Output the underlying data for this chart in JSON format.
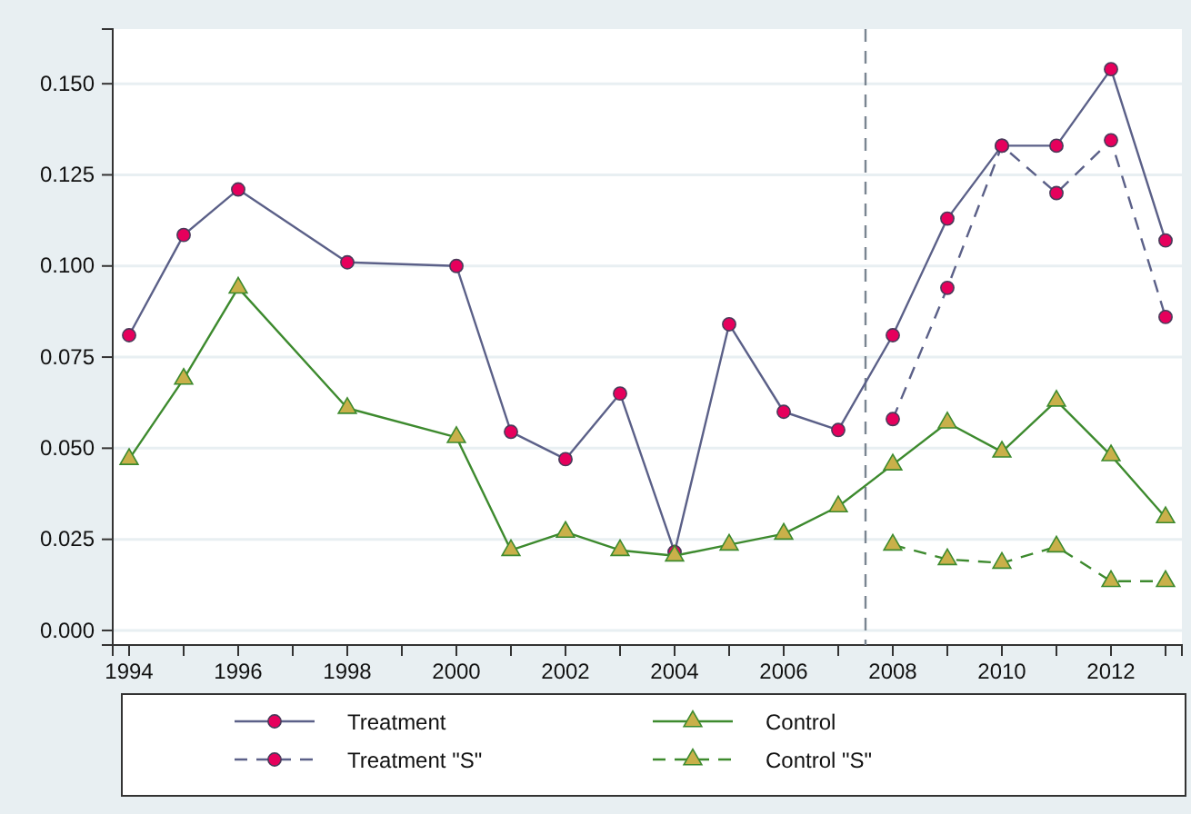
{
  "chart_data": {
    "type": "line",
    "x": [
      1994,
      1995,
      1996,
      1998,
      2000,
      2001,
      2002,
      2003,
      2004,
      2005,
      2006,
      2007,
      2008,
      2009,
      2010,
      2011,
      2012,
      2013
    ],
    "series": [
      {
        "name": "Treatment",
        "color": "#5b6088",
        "marker": "circle",
        "line_style": "solid",
        "values": [
          0.081,
          0.1085,
          0.121,
          0.101,
          0.1,
          0.0545,
          0.047,
          0.065,
          0.0215,
          0.084,
          0.06,
          0.055,
          0.081,
          0.113,
          0.133,
          0.133,
          0.154,
          0.107
        ]
      },
      {
        "name": "Control",
        "color": "#3d8a2e",
        "marker": "triangle",
        "line_style": "solid",
        "values": [
          0.047,
          0.069,
          0.094,
          0.061,
          0.053,
          0.022,
          0.027,
          0.022,
          0.0205,
          0.0235,
          0.0265,
          0.034,
          0.0455,
          0.057,
          0.049,
          0.063,
          0.048,
          0.031
        ]
      },
      {
        "name": "Treatment \"S\"",
        "color": "#5b6088",
        "marker": "circle",
        "line_style": "dashed",
        "x": [
          2008,
          2009,
          2010,
          2011,
          2012,
          2013
        ],
        "values": [
          0.058,
          0.094,
          0.133,
          0.12,
          0.1345,
          0.086
        ]
      },
      {
        "name": "Control \"S\"",
        "color": "#3d8a2e",
        "marker": "triangle",
        "line_style": "dashed",
        "x": [
          2008,
          2009,
          2010,
          2011,
          2012,
          2013
        ],
        "values": [
          0.0235,
          0.0195,
          0.0185,
          0.023,
          0.0135,
          0.0135
        ]
      }
    ],
    "xlim": [
      1993.7,
      2013.3
    ],
    "xticks": [
      1994,
      {
        "value": 1995,
        "label": null
      },
      1996,
      {
        "value": 1997,
        "label": null
      },
      1998,
      {
        "value": 1999,
        "label": null
      },
      2000,
      {
        "value": 2001,
        "label": null
      },
      2002,
      {
        "value": 2003,
        "label": null
      },
      2004,
      {
        "value": 2005,
        "label": null
      },
      2006,
      {
        "value": 2007,
        "label": null
      },
      2008,
      {
        "value": 2009,
        "label": null
      },
      2010,
      {
        "value": 2011,
        "label": null
      },
      2012,
      {
        "value": 2013,
        "label": null
      }
    ],
    "ylim": [
      -0.004,
      0.165
    ],
    "yticks": [
      {
        "value": 0,
        "label": "0.000"
      },
      {
        "value": 0.025,
        "label": "0.025"
      },
      {
        "value": 0.05,
        "label": "0.050"
      },
      {
        "value": 0.075,
        "label": "0.075"
      },
      {
        "value": 0.1,
        "label": "0.100"
      },
      {
        "value": 0.125,
        "label": "0.125"
      },
      {
        "value": 0.15,
        "label": "0.150"
      }
    ],
    "grid": "y",
    "legend": "bottom",
    "ref_lines": [
      {
        "axis": "x",
        "value": 2007.5,
        "color": "#7a8591",
        "line_style": "dashed"
      }
    ]
  }
}
